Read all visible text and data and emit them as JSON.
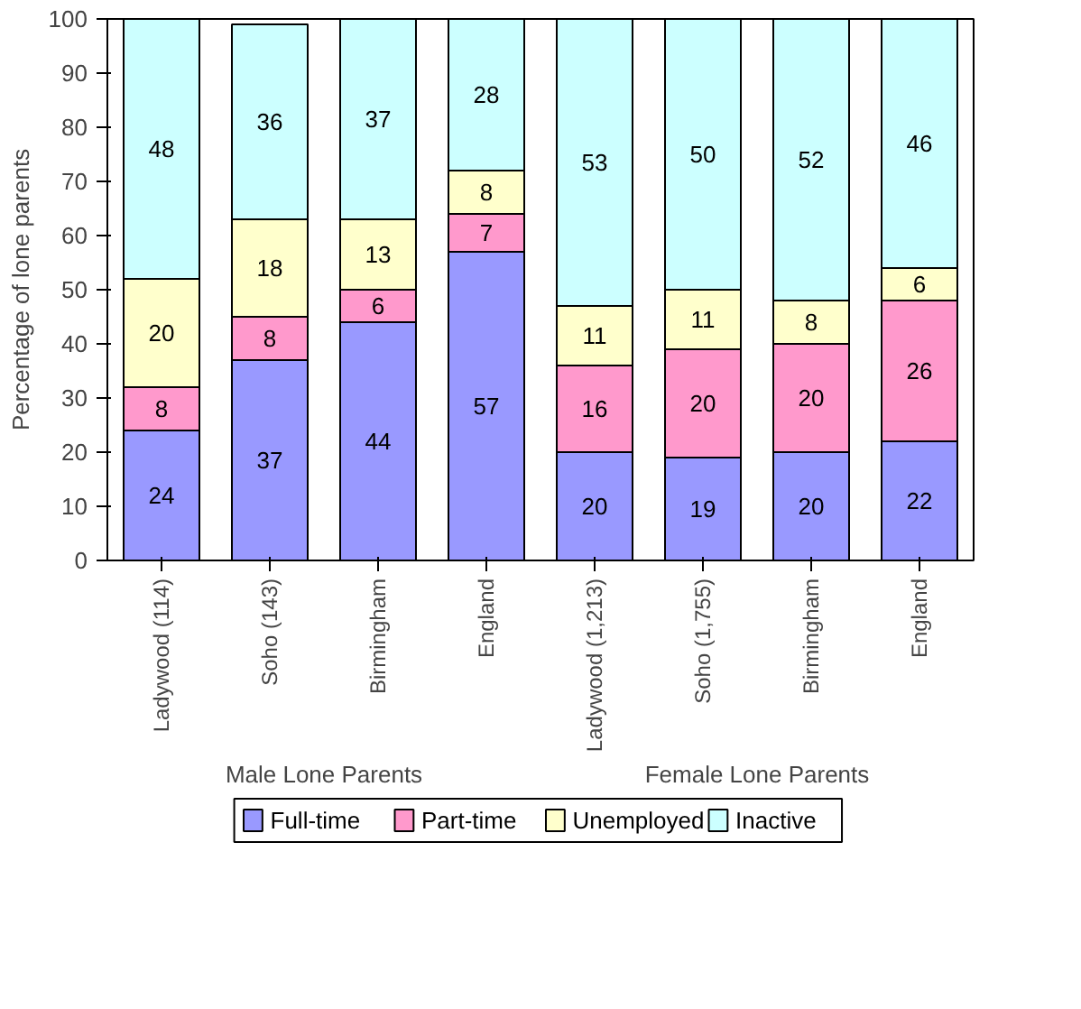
{
  "chart_data": {
    "type": "bar",
    "stacked": true,
    "ylabel": "Percentage of lone parents",
    "categories": [
      "Ladywood (114)",
      "Soho (143)",
      "Birmingham",
      "England",
      "Ladywood (1,213)",
      "Soho (1,755)",
      "Birmingham",
      "England"
    ],
    "series": [
      {
        "name": "Full-time",
        "color": "#9999ff",
        "values": [
          24,
          37,
          44,
          57,
          20,
          19,
          20,
          22
        ]
      },
      {
        "name": "Part-time",
        "color": "#ff99cc",
        "values": [
          8,
          8,
          6,
          7,
          16,
          20,
          20,
          26
        ]
      },
      {
        "name": "Unemployed",
        "color": "#ffffcc",
        "values": [
          20,
          18,
          13,
          8,
          11,
          11,
          8,
          6
        ]
      },
      {
        "name": "Inactive",
        "color": "#ccffff",
        "values": [
          48,
          36,
          37,
          28,
          53,
          50,
          52,
          46
        ]
      }
    ],
    "ylim": [
      0,
      100
    ],
    "yticks": [
      0,
      10,
      20,
      30,
      40,
      50,
      60,
      70,
      80,
      90,
      100
    ],
    "data_labels": true,
    "legend": "bottom",
    "annotations": [
      "Male Lone Parents",
      "Female Lone Parents"
    ]
  }
}
